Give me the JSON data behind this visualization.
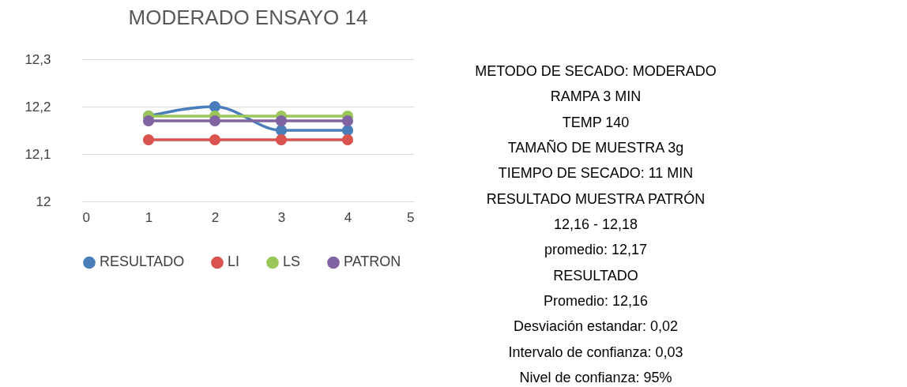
{
  "chart_data": [
    {
      "type": "line",
      "title": "MODERADO ENSAYO 14",
      "x": [
        1,
        2,
        3,
        4
      ],
      "series": [
        {
          "name": "RESULTADO",
          "color": "#4a7ebb",
          "values": [
            12.18,
            12.2,
            12.15,
            12.15
          ]
        },
        {
          "name": "LI",
          "color": "#d9534f",
          "values": [
            12.13,
            12.13,
            12.13,
            12.13
          ]
        },
        {
          "name": "LS",
          "color": "#9bc75a",
          "values": [
            12.18,
            12.18,
            12.18,
            12.18
          ]
        },
        {
          "name": "PATRON",
          "color": "#8064a2",
          "values": [
            12.17,
            12.17,
            12.17,
            12.17
          ]
        }
      ],
      "xlim": [
        0,
        5
      ],
      "xticks": [
        0,
        1,
        2,
        3,
        4,
        5
      ],
      "ylim": [
        12,
        12.3
      ],
      "yticks": [
        {
          "value": 12,
          "label": "12"
        },
        {
          "value": 12.1,
          "label": "12,1"
        },
        {
          "value": 12.2,
          "label": "12,2"
        },
        {
          "value": 12.3,
          "label": "12,3"
        }
      ],
      "grid": "y",
      "legend": "bottom",
      "marker": "circle"
    },
    {
      "type": "other",
      "annotations": [
        "METODO DE SECADO: MODERADO",
        "RAMPA 3 MIN",
        "TEMP 140",
        "TAMAÑO DE MUESTRA 3g",
        "TIEMPO DE SECADO: 11 MIN",
        "RESULTADO MUESTRA PATRÓN",
        "12,16 - 12,18",
        "promedio: 12,17",
        "RESULTADO",
        "Promedio: 12,16",
        "Desviación estandar: 0,02",
        "Intervalo de confianza: 0,03",
        "Nivel de confianza: 95%"
      ]
    }
  ]
}
